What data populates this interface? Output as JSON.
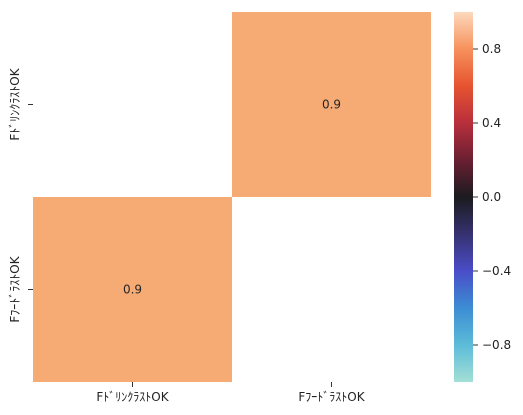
{
  "chart_data": {
    "type": "heatmap",
    "rows": [
      "FﾄﾞﾘﾝｸﾗｽﾄOK",
      "FﾌｰﾄﾞﾗｽﾄOK"
    ],
    "cols": [
      "FﾄﾞﾘﾝｸﾗｽﾄOK",
      "FﾌｰﾄﾞﾗｽﾄOK"
    ],
    "values": [
      [
        null,
        0.9
      ],
      [
        0.9,
        null
      ]
    ],
    "annotations": [
      [
        "",
        "0.9"
      ],
      [
        "0.9",
        ""
      ]
    ],
    "colorbar": {
      "range": [
        -1.0,
        1.0
      ],
      "ticks": [
        -0.8,
        -0.4,
        0.0,
        0.4,
        0.8
      ],
      "tick_labels": [
        "−0.8",
        "−0.4",
        "0.0",
        "0.4",
        "0.8"
      ],
      "colormap": "icefire"
    },
    "cell_color": "#f6ab74",
    "title": "",
    "xlabel": "",
    "ylabel": ""
  }
}
